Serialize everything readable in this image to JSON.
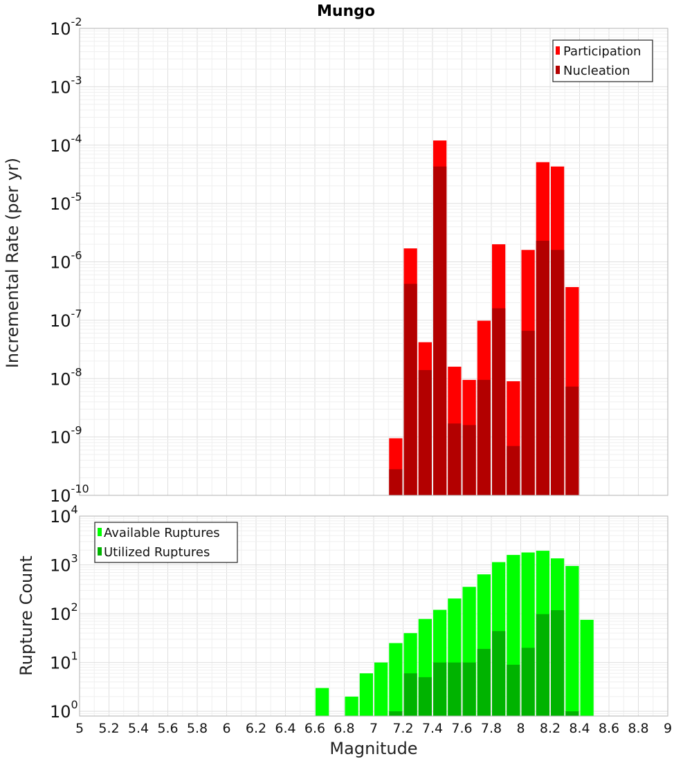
{
  "chart_data": [
    {
      "type": "bar",
      "title": "Mungo",
      "ylabel": "Incremental Rate (per yr)",
      "xlabel": "",
      "y_scale": "log",
      "ylim": [
        1e-10,
        0.01
      ],
      "xlim": [
        5,
        9
      ],
      "y_ticks": [
        {
          "base": "10",
          "exp": "-10"
        },
        {
          "base": "10",
          "exp": "-9"
        },
        {
          "base": "10",
          "exp": "-8"
        },
        {
          "base": "10",
          "exp": "-7"
        },
        {
          "base": "10",
          "exp": "-6"
        },
        {
          "base": "10",
          "exp": "-5"
        },
        {
          "base": "10",
          "exp": "-4"
        },
        {
          "base": "10",
          "exp": "-3"
        },
        {
          "base": "10",
          "exp": "-2"
        }
      ],
      "bin_width": 0.1,
      "x": [
        7.15,
        7.25,
        7.35,
        7.45,
        7.55,
        7.65,
        7.75,
        7.85,
        7.95,
        8.05,
        8.15,
        8.25,
        8.35
      ],
      "series": [
        {
          "name": "Participation",
          "color": "#ff0000",
          "values": [
            9.5e-10,
            1.7e-06,
            4.2e-08,
            0.00012,
            1.6e-08,
            9.5e-09,
            9.8e-08,
            2e-06,
            9e-09,
            1.6e-06,
            5.1e-05,
            4.3e-05,
            3.7e-07
          ]
        },
        {
          "name": "Nucleation",
          "color": "#b30000",
          "values": [
            2.8e-10,
            4.2e-07,
            1.4e-08,
            4.3e-05,
            1.7e-09,
            1.6e-09,
            9.5e-09,
            1.6e-07,
            7e-10,
            6.6e-08,
            2.3e-06,
            1.6e-06,
            7.3e-09
          ]
        }
      ],
      "legend_position": "top-right",
      "grid": true
    },
    {
      "type": "bar",
      "title": "",
      "ylabel": "Rupture Count",
      "xlabel": "Magnitude",
      "y_scale": "log",
      "ylim": [
        0.8,
        10000
      ],
      "xlim": [
        5,
        9
      ],
      "x_ticks": [
        "5",
        "5.2",
        "5.4",
        "5.6",
        "5.8",
        "6",
        "6.2",
        "6.4",
        "6.6",
        "6.8",
        "7",
        "7.2",
        "7.4",
        "7.6",
        "7.8",
        "8",
        "8.2",
        "8.4",
        "8.6",
        "8.8",
        "9"
      ],
      "y_ticks": [
        {
          "base": "10",
          "exp": "0"
        },
        {
          "base": "10",
          "exp": "1"
        },
        {
          "base": "10",
          "exp": "2"
        },
        {
          "base": "10",
          "exp": "3"
        },
        {
          "base": "10",
          "exp": "4"
        }
      ],
      "bin_width": 0.1,
      "x": [
        6.65,
        6.85,
        6.95,
        7.05,
        7.15,
        7.25,
        7.35,
        7.45,
        7.55,
        7.65,
        7.75,
        7.85,
        7.95,
        8.05,
        8.15,
        8.25,
        8.35,
        8.45
      ],
      "series": [
        {
          "name": "Available Ruptures",
          "color": "#00ff00",
          "values": [
            3,
            2,
            6,
            10,
            25,
            40,
            78,
            120,
            205,
            355,
            640,
            1140,
            1600,
            1800,
            1950,
            1360,
            950,
            75
          ]
        },
        {
          "name": "Utilized Ruptures",
          "color": "#00b300",
          "values": [
            0,
            0,
            0,
            0,
            1,
            6,
            5,
            10,
            10,
            10,
            19,
            44,
            9,
            20,
            98,
            118,
            1,
            0
          ]
        }
      ],
      "legend_position": "top-left",
      "grid": true
    }
  ]
}
